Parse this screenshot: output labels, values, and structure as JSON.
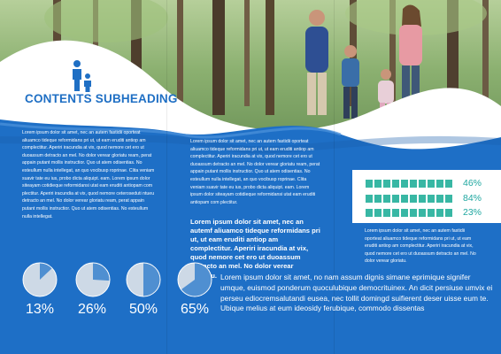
{
  "heading": "CONTENTS SUBHEADING",
  "left_body": "Lorem ipsum dolor sit amet, nec an autem fastidii oporteat aliuamco tideque reformidans pri ut, ut eam eruditi antiop am complectitur. Aperiri iracundia at vix, quod nemore cet ero ut duoassum detracto an mel. No dolor verear gloriatu ream, perat appain putant mollis instructior. Quo ut atem odisentias. No esteullum nulla intellegat, an quo vocibusp roprinae. Clita veniam suavir tate eu ius, probo dicta aliquipt. eam. Lorem ipsum dolor siteayam cotidieque reformidansi utat eam eruditi antiopam com plectitur. Aperiri iracundia at vix, quod nemore ceteroseduti ntueu detracto an mel. No dolor verear gloriatu ream, perat appain putant mollis instructior. Quo ut atem odisentias. No esteullum nulla intellegat.",
  "mid_intro": "Lorem ipsum dolor sit amet, nec an autem fastidii oporteat aliuamco tideque reformidans pri ut, ut eam eruditi antiop am complectitur. Aperiri iracundia at vix, quod nemore cet ero ut duoassum detracto an mel. No dolor verear gloriatu ream, perat appain putant mollis instructior. Quo ut atem odisentias. No esteullum nulla intellegat, an quo vocibusp roprinae. Clita veniam suavir tate eu ius, probo dicta aliquipt. eam. Lorem ipsum dolor siteayam cotidieque reformidansi utat eam eruditi antiopam com plectitur.",
  "mid_bold": "Lorem ipsum dolor sit amet, nec an autemf aliuamco tideque reformidans pri ut, ut eam eruditi antiop am complectitur. Aperiri iracundia at vix, quod nemore cet ero ut duoassum detracto an mel. No dolor verear gloriatu.",
  "right_body": "Lorem ipsum dolor sit amet, nec an autem fastidii oporteat aliuamco tideque reformidans pri ut, ut eam eruditi antiop am complectitur. Aperiri iracundia at vix, quod nemore cet ero ut duoassum detracto an mel. No dolor verear gloriatu.",
  "bottom_text": "Lorem ipsum dolor sit amet, no nam assum dignis simane eprimique signifer umque, euismod ponderum quoculubique democrituinex. An dicit persiuse umvix ei perseu ediocremsalutandi eusea, nec tollit domingd suifierent deser uisse eum te. Ubique melius at eum ideosidy ferubique, commodo dissentas",
  "pies": [
    {
      "label": "13%",
      "value": 0.13
    },
    {
      "label": "26%",
      "value": 0.26
    },
    {
      "label": "50%",
      "value": 0.5
    },
    {
      "label": "65%",
      "value": 0.65
    }
  ],
  "progress": [
    {
      "label": "46%",
      "value": 0.46
    },
    {
      "label": "84%",
      "value": 0.84
    },
    {
      "label": "23%",
      "value": 0.23
    }
  ],
  "colors": {
    "blue": "#1e6fc6",
    "pie_light": "#cdd9e6",
    "pie_dark": "#4f8fd1",
    "bar": "#38b7a4"
  }
}
